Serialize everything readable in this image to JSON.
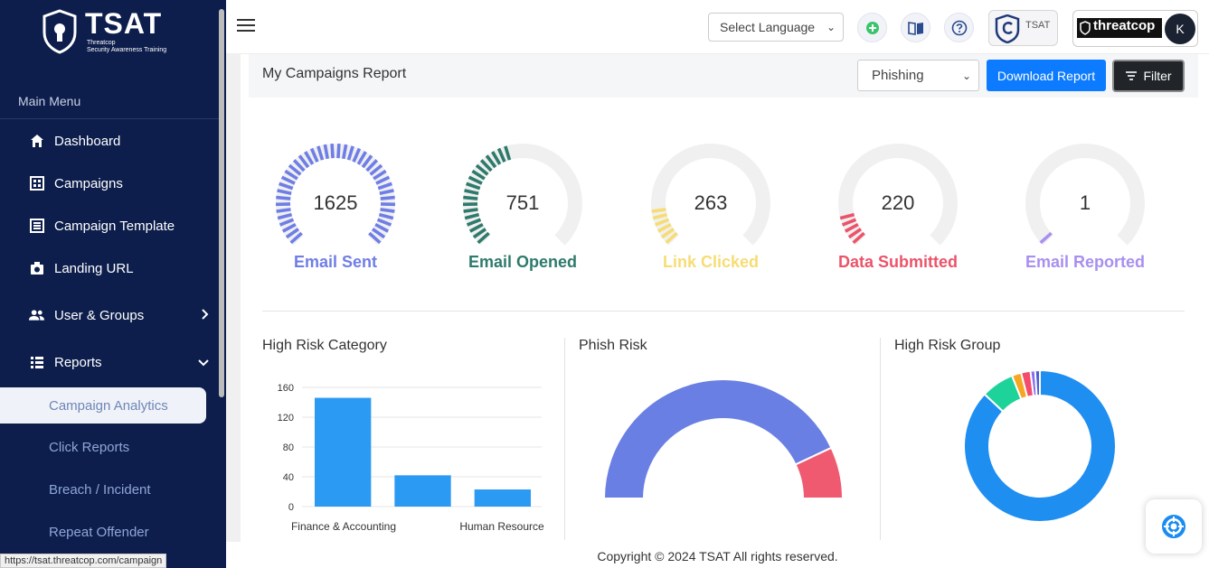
{
  "sidebar": {
    "brand": "TSAT",
    "brand_sub1": "Threatcop",
    "brand_sub2": "Security Awareness Training",
    "menu_heading": "Main Menu",
    "items": [
      {
        "label": "Dashboard",
        "icon": "home-icon"
      },
      {
        "label": "Campaigns",
        "icon": "campaigns-icon"
      },
      {
        "label": "Campaign Template",
        "icon": "template-icon"
      },
      {
        "label": "Landing URL",
        "icon": "camera-icon"
      },
      {
        "label": "User & Groups",
        "icon": "users-icon"
      },
      {
        "label": "Reports",
        "icon": "list-icon"
      }
    ],
    "sub_items": [
      {
        "label": "Campaign Analytics",
        "active": true
      },
      {
        "label": "Click Reports"
      },
      {
        "label": "Breach / Incident"
      },
      {
        "label": "Repeat Offender"
      }
    ]
  },
  "status_url": "https://tsat.threatcop.com/campaign",
  "topbar": {
    "language_placeholder": "Select Language",
    "tsat_label": "TSAT",
    "threatcop_label": "threatcop",
    "avatar_initial": "K"
  },
  "report": {
    "title": "My Campaigns Report",
    "type_selected": "Phishing",
    "download_label": "Download Report",
    "filter_label": "Filter"
  },
  "gauges": [
    {
      "label": "Email Sent",
      "value": "1625",
      "fraction": 1.0,
      "color": "#6f7ee6"
    },
    {
      "label": "Email Opened",
      "value": "751",
      "fraction": 0.46,
      "color": "#2e7a6c"
    },
    {
      "label": "Link Clicked",
      "value": "263",
      "fraction": 0.16,
      "color": "#f7dc74"
    },
    {
      "label": "Data Submitted",
      "value": "220",
      "fraction": 0.135,
      "color": "#ec5369"
    },
    {
      "label": "Email Reported",
      "value": "1",
      "fraction": 0.01,
      "color": "#a88ff0"
    }
  ],
  "sections": {
    "high_risk_category": "High Risk Category",
    "phish_risk": "Phish Risk",
    "high_risk_group": "High Risk Group"
  },
  "chart_data": [
    {
      "type": "bar",
      "title": "High Risk Category",
      "categories": [
        "Finance & Accounting",
        "",
        "Human Resource"
      ],
      "values": [
        146,
        42,
        23
      ],
      "ylim": [
        0,
        160
      ],
      "yticks": [
        0,
        40,
        80,
        120,
        160
      ],
      "color": "#2b9af3"
    },
    {
      "type": "pie",
      "title": "Phish Risk",
      "style": "semi-donut",
      "values": [
        86,
        14
      ],
      "colors": [
        "#6a7fe3",
        "#f05a70"
      ]
    },
    {
      "type": "pie",
      "title": "High Risk Group",
      "style": "donut",
      "values": [
        87,
        7,
        2,
        2,
        1,
        1
      ],
      "colors": [
        "#1f8ef1",
        "#1ed39a",
        "#f6a623",
        "#f44c6a",
        "#8a6cf0",
        "#4c5cd8"
      ]
    }
  ],
  "footer": "Copyright © 2024 TSAT All rights reserved."
}
